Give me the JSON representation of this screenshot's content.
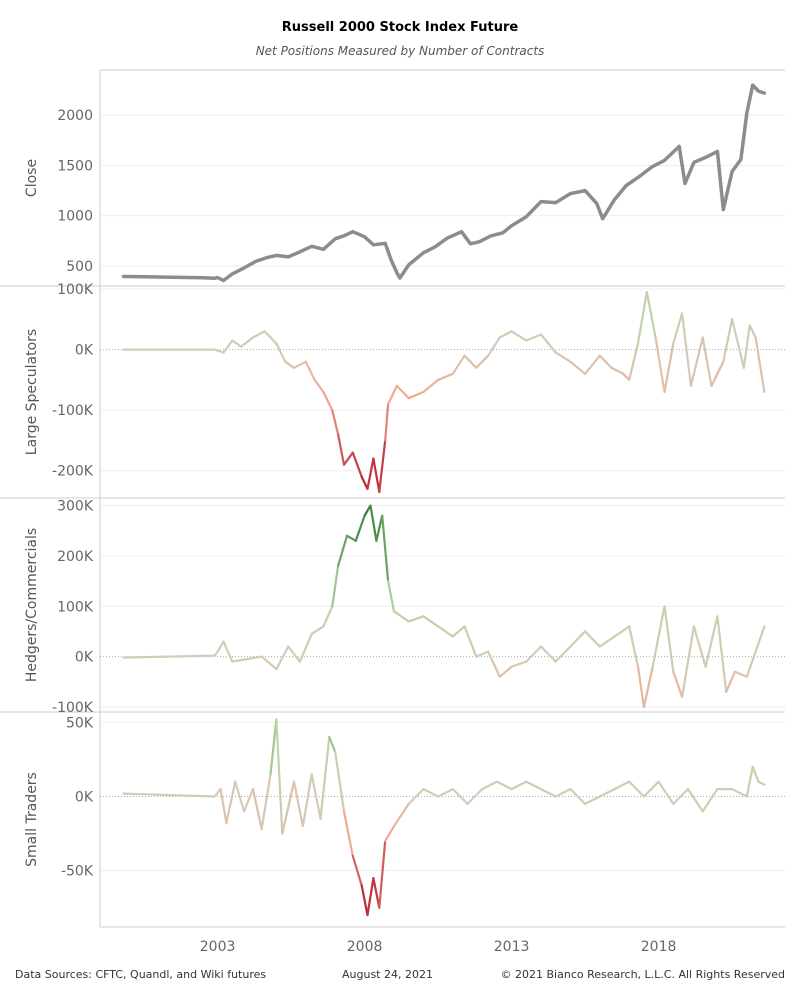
{
  "title": "Russell 2000 Stock Index Future",
  "subtitle": "Net Positions Measured by Number of Contracts",
  "footer": {
    "sources": "Data Sources: CFTC, Quandl, and Wiki futures",
    "date": "August 24, 2021",
    "copyright": "© 2021 Bianco Research, L.L.C. All Rights Reserved"
  },
  "colors": {
    "close_line": "#8c8c8c",
    "positive_strong": "#2e7d32",
    "positive_light": "#b9d4a3",
    "neutral": "#d3ccb8",
    "negative_light": "#f0a890",
    "negative_strong": "#b71c2c",
    "gridline": "#eeeeee",
    "zero_line": "#aaaaaa",
    "panel_border": "#cccccc"
  },
  "chart_data": {
    "type": "line",
    "x_ticks": [
      "2003",
      "2008",
      "2013",
      "2018"
    ],
    "panels": [
      {
        "ylabel": "Close",
        "ylim": [
          300,
          2450
        ],
        "y_ticks": [
          500,
          1000,
          1500,
          2000
        ],
        "y_tick_labels": [
          "500",
          "1000",
          "1500",
          "2000"
        ],
        "color_mode": "solid",
        "points": [
          [
            1999.8,
            395
          ],
          [
            2000.5,
            393
          ],
          [
            2001.5,
            388
          ],
          [
            2002.5,
            383
          ],
          [
            2002.9,
            378
          ],
          [
            2003.0,
            385
          ],
          [
            2003.2,
            355
          ],
          [
            2003.5,
            420
          ],
          [
            2003.9,
            480
          ],
          [
            2004.3,
            545
          ],
          [
            2004.7,
            585
          ],
          [
            2005.0,
            605
          ],
          [
            2005.4,
            590
          ],
          [
            2005.8,
            640
          ],
          [
            2006.2,
            695
          ],
          [
            2006.6,
            665
          ],
          [
            2007.0,
            770
          ],
          [
            2007.3,
            800
          ],
          [
            2007.6,
            840
          ],
          [
            2008.0,
            790
          ],
          [
            2008.3,
            710
          ],
          [
            2008.7,
            725
          ],
          [
            2008.9,
            560
          ],
          [
            2009.1,
            430
          ],
          [
            2009.2,
            380
          ],
          [
            2009.5,
            510
          ],
          [
            2010.0,
            630
          ],
          [
            2010.4,
            690
          ],
          [
            2010.8,
            775
          ],
          [
            2011.3,
            840
          ],
          [
            2011.6,
            720
          ],
          [
            2011.9,
            740
          ],
          [
            2012.3,
            800
          ],
          [
            2012.7,
            830
          ],
          [
            2013.0,
            900
          ],
          [
            2013.5,
            990
          ],
          [
            2014.0,
            1140
          ],
          [
            2014.5,
            1130
          ],
          [
            2015.0,
            1220
          ],
          [
            2015.5,
            1250
          ],
          [
            2015.9,
            1120
          ],
          [
            2016.1,
            970
          ],
          [
            2016.5,
            1160
          ],
          [
            2016.9,
            1300
          ],
          [
            2017.3,
            1380
          ],
          [
            2017.8,
            1490
          ],
          [
            2018.2,
            1550
          ],
          [
            2018.7,
            1690
          ],
          [
            2018.9,
            1320
          ],
          [
            2019.2,
            1530
          ],
          [
            2019.6,
            1580
          ],
          [
            2020.0,
            1640
          ],
          [
            2020.2,
            1060
          ],
          [
            2020.5,
            1440
          ],
          [
            2020.8,
            1560
          ],
          [
            2021.0,
            2020
          ],
          [
            2021.2,
            2300
          ],
          [
            2021.4,
            2240
          ],
          [
            2021.6,
            2220
          ]
        ]
      },
      {
        "ylabel": "Large Speculators",
        "ylim": [
          -245000,
          105000
        ],
        "y_ticks": [
          -200000,
          -100000,
          0,
          100000
        ],
        "y_tick_labels": [
          "-200K",
          "-100K",
          "0K",
          "100K"
        ],
        "color_mode": "diverging",
        "color_scale": 230000,
        "points": [
          [
            1999.8,
            0
          ],
          [
            2002.9,
            0
          ],
          [
            2003.2,
            -5000
          ],
          [
            2003.5,
            15000
          ],
          [
            2003.8,
            5000
          ],
          [
            2004.2,
            20000
          ],
          [
            2004.6,
            30000
          ],
          [
            2005.0,
            10000
          ],
          [
            2005.3,
            -20000
          ],
          [
            2005.6,
            -30000
          ],
          [
            2006.0,
            -20000
          ],
          [
            2006.3,
            -50000
          ],
          [
            2006.6,
            -70000
          ],
          [
            2006.9,
            -100000
          ],
          [
            2007.1,
            -140000
          ],
          [
            2007.3,
            -190000
          ],
          [
            2007.6,
            -170000
          ],
          [
            2007.9,
            -210000
          ],
          [
            2008.1,
            -230000
          ],
          [
            2008.3,
            -180000
          ],
          [
            2008.5,
            -235000
          ],
          [
            2008.7,
            -150000
          ],
          [
            2008.8,
            -90000
          ],
          [
            2009.1,
            -60000
          ],
          [
            2009.5,
            -80000
          ],
          [
            2010.0,
            -70000
          ],
          [
            2010.5,
            -50000
          ],
          [
            2011.0,
            -40000
          ],
          [
            2011.4,
            -10000
          ],
          [
            2011.8,
            -30000
          ],
          [
            2012.2,
            -10000
          ],
          [
            2012.6,
            20000
          ],
          [
            2013.0,
            30000
          ],
          [
            2013.5,
            15000
          ],
          [
            2014.0,
            25000
          ],
          [
            2014.5,
            -5000
          ],
          [
            2015.0,
            -20000
          ],
          [
            2015.5,
            -40000
          ],
          [
            2016.0,
            -10000
          ],
          [
            2016.4,
            -30000
          ],
          [
            2016.8,
            -40000
          ],
          [
            2017.0,
            -50000
          ],
          [
            2017.3,
            10000
          ],
          [
            2017.6,
            95000
          ],
          [
            2017.9,
            20000
          ],
          [
            2018.2,
            -70000
          ],
          [
            2018.5,
            10000
          ],
          [
            2018.8,
            60000
          ],
          [
            2019.1,
            -60000
          ],
          [
            2019.5,
            20000
          ],
          [
            2019.8,
            -60000
          ],
          [
            2020.2,
            -20000
          ],
          [
            2020.5,
            50000
          ],
          [
            2020.9,
            -30000
          ],
          [
            2021.1,
            40000
          ],
          [
            2021.3,
            20000
          ],
          [
            2021.6,
            -70000
          ]
        ]
      },
      {
        "ylabel": "Hedgers/Commercials",
        "ylim": [
          -110000,
          315000
        ],
        "y_ticks": [
          -100000,
          0,
          100000,
          200000,
          300000
        ],
        "y_tick_labels": [
          "-100K",
          "0K",
          "100K",
          "200K",
          "300K"
        ],
        "color_mode": "diverging",
        "color_scale": 300000,
        "points": [
          [
            1999.8,
            -2000
          ],
          [
            2002.9,
            2000
          ],
          [
            2003.0,
            10000
          ],
          [
            2003.2,
            30000
          ],
          [
            2003.5,
            -10000
          ],
          [
            2004.0,
            -5000
          ],
          [
            2004.5,
            0
          ],
          [
            2005.0,
            -25000
          ],
          [
            2005.4,
            20000
          ],
          [
            2005.8,
            -10000
          ],
          [
            2006.2,
            45000
          ],
          [
            2006.6,
            60000
          ],
          [
            2006.9,
            100000
          ],
          [
            2007.1,
            180000
          ],
          [
            2007.4,
            240000
          ],
          [
            2007.7,
            230000
          ],
          [
            2008.0,
            280000
          ],
          [
            2008.2,
            300000
          ],
          [
            2008.4,
            230000
          ],
          [
            2008.6,
            280000
          ],
          [
            2008.8,
            150000
          ],
          [
            2009.0,
            90000
          ],
          [
            2009.5,
            70000
          ],
          [
            2010.0,
            80000
          ],
          [
            2010.5,
            60000
          ],
          [
            2011.0,
            40000
          ],
          [
            2011.4,
            60000
          ],
          [
            2011.8,
            0
          ],
          [
            2012.2,
            10000
          ],
          [
            2012.6,
            -40000
          ],
          [
            2013.0,
            -20000
          ],
          [
            2013.5,
            -10000
          ],
          [
            2014.0,
            20000
          ],
          [
            2014.5,
            -10000
          ],
          [
            2015.0,
            20000
          ],
          [
            2015.5,
            50000
          ],
          [
            2016.0,
            20000
          ],
          [
            2016.5,
            40000
          ],
          [
            2017.0,
            60000
          ],
          [
            2017.3,
            -20000
          ],
          [
            2017.5,
            -100000
          ],
          [
            2017.8,
            -20000
          ],
          [
            2018.2,
            100000
          ],
          [
            2018.5,
            -30000
          ],
          [
            2018.8,
            -80000
          ],
          [
            2019.2,
            60000
          ],
          [
            2019.6,
            -20000
          ],
          [
            2020.0,
            80000
          ],
          [
            2020.3,
            -70000
          ],
          [
            2020.6,
            -30000
          ],
          [
            2021.0,
            -40000
          ],
          [
            2021.3,
            10000
          ],
          [
            2021.6,
            60000
          ]
        ]
      },
      {
        "ylabel": "Small Traders",
        "ylim": [
          -88000,
          57000
        ],
        "y_ticks": [
          -50000,
          0,
          50000
        ],
        "y_tick_labels": [
          "-50K",
          "0K",
          "50K"
        ],
        "color_mode": "diverging",
        "color_scale": 75000,
        "points": [
          [
            1999.8,
            2000
          ],
          [
            2002.9,
            0
          ],
          [
            2003.1,
            5000
          ],
          [
            2003.3,
            -18000
          ],
          [
            2003.6,
            10000
          ],
          [
            2003.9,
            -10000
          ],
          [
            2004.2,
            5000
          ],
          [
            2004.5,
            -22000
          ],
          [
            2004.8,
            15000
          ],
          [
            2005.0,
            52000
          ],
          [
            2005.2,
            -25000
          ],
          [
            2005.6,
            10000
          ],
          [
            2005.9,
            -20000
          ],
          [
            2006.2,
            15000
          ],
          [
            2006.5,
            -15000
          ],
          [
            2006.8,
            40000
          ],
          [
            2007.0,
            30000
          ],
          [
            2007.3,
            -10000
          ],
          [
            2007.6,
            -40000
          ],
          [
            2007.9,
            -60000
          ],
          [
            2008.1,
            -80000
          ],
          [
            2008.3,
            -55000
          ],
          [
            2008.5,
            -75000
          ],
          [
            2008.7,
            -30000
          ],
          [
            2009.0,
            -20000
          ],
          [
            2009.5,
            -5000
          ],
          [
            2010.0,
            5000
          ],
          [
            2010.5,
            0
          ],
          [
            2011.0,
            5000
          ],
          [
            2011.5,
            -5000
          ],
          [
            2012.0,
            5000
          ],
          [
            2012.5,
            10000
          ],
          [
            2013.0,
            5000
          ],
          [
            2013.5,
            10000
          ],
          [
            2014.0,
            5000
          ],
          [
            2014.5,
            0
          ],
          [
            2015.0,
            5000
          ],
          [
            2015.5,
            -5000
          ],
          [
            2016.0,
            0
          ],
          [
            2016.5,
            5000
          ],
          [
            2017.0,
            10000
          ],
          [
            2017.5,
            0
          ],
          [
            2018.0,
            10000
          ],
          [
            2018.5,
            -5000
          ],
          [
            2019.0,
            5000
          ],
          [
            2019.5,
            -10000
          ],
          [
            2020.0,
            5000
          ],
          [
            2020.5,
            5000
          ],
          [
            2021.0,
            0
          ],
          [
            2021.2,
            20000
          ],
          [
            2021.4,
            10000
          ],
          [
            2021.6,
            8000
          ]
        ]
      }
    ]
  }
}
